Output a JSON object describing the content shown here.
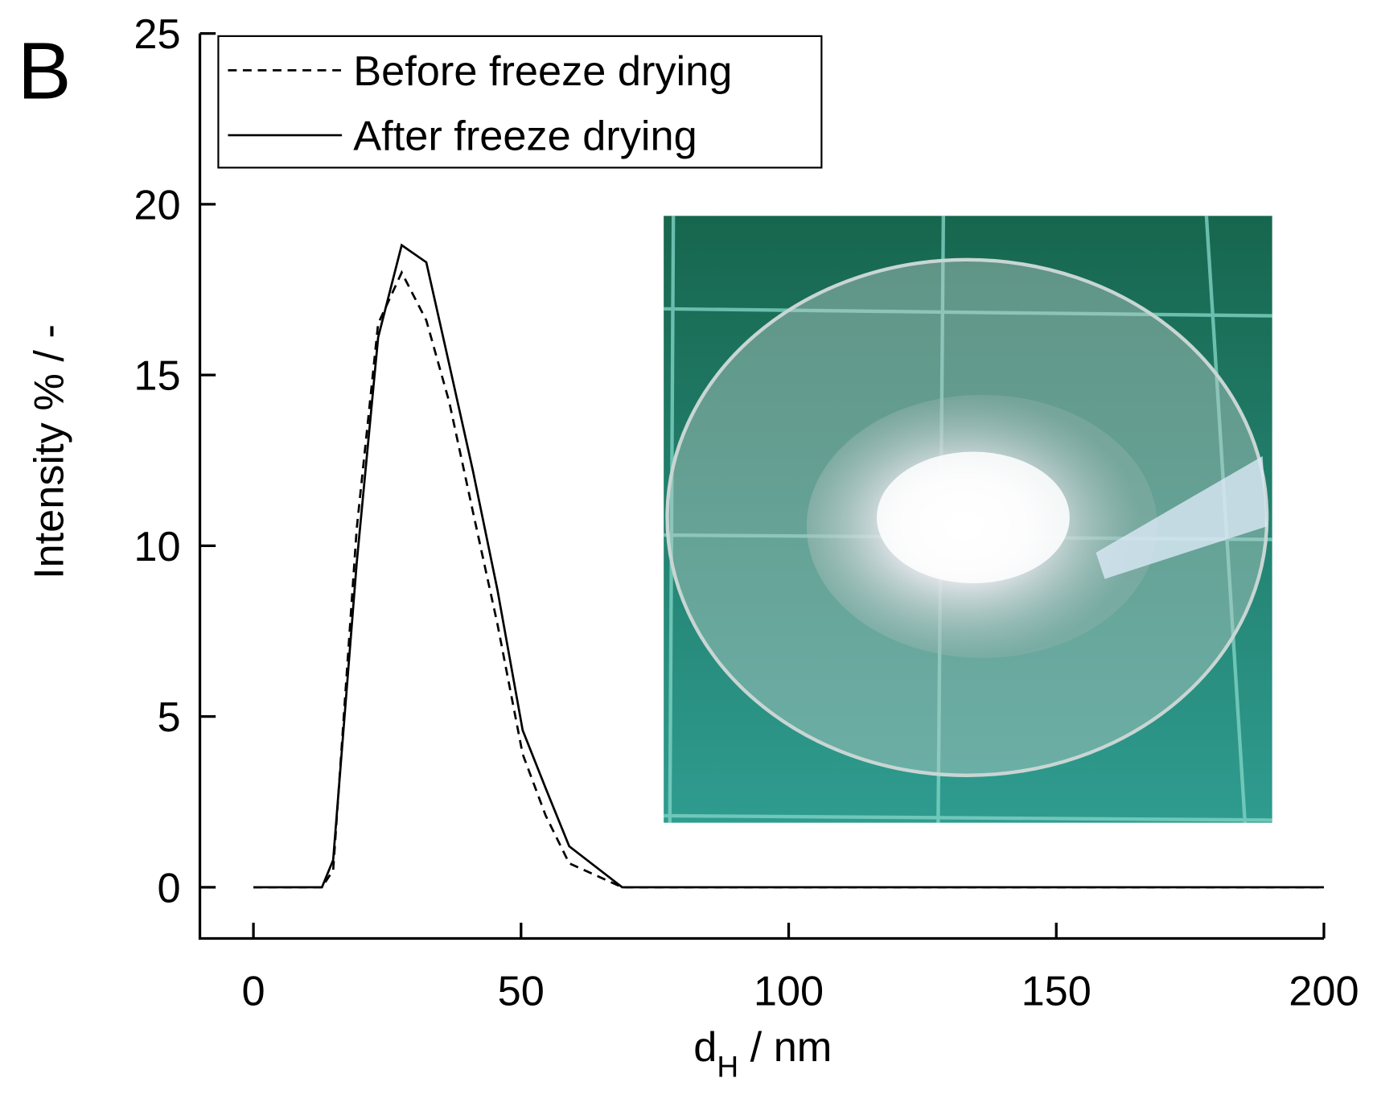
{
  "chart_data": {
    "type": "line",
    "panel_label": "B",
    "xlabel": "d",
    "xlabel_subscript": "H",
    "xlabel_suffix": " / nm",
    "ylabel": "Intensity % / -",
    "x": [
      0,
      12.8,
      14.9,
      19.3,
      23.3,
      27.7,
      32.3,
      36.6,
      41.0,
      45.6,
      50.3,
      54.6,
      59.0,
      68.9,
      200
    ],
    "series": [
      {
        "name": "Before freeze drying",
        "color": "#000000",
        "line_style": "dashed",
        "values": [
          0,
          0,
          0.5,
          10.5,
          16.5,
          18.0,
          16.6,
          14.2,
          11.0,
          7.7,
          3.9,
          2.1,
          0.7,
          0,
          0
        ]
      },
      {
        "name": "After freeze drying",
        "color": "#000000",
        "line_style": "solid",
        "values": [
          0,
          0,
          0.8,
          9.5,
          16.1,
          18.8,
          18.3,
          15.3,
          12.2,
          8.7,
          4.6,
          2.9,
          1.2,
          0,
          0
        ]
      }
    ],
    "xlim": [
      -10,
      200
    ],
    "xticks": [
      0,
      50,
      100,
      150,
      200
    ],
    "ylim": [
      -1.5,
      25
    ],
    "yticks": [
      0,
      5,
      10,
      15,
      20,
      25
    ],
    "grid": false,
    "legend": "upper left"
  }
}
